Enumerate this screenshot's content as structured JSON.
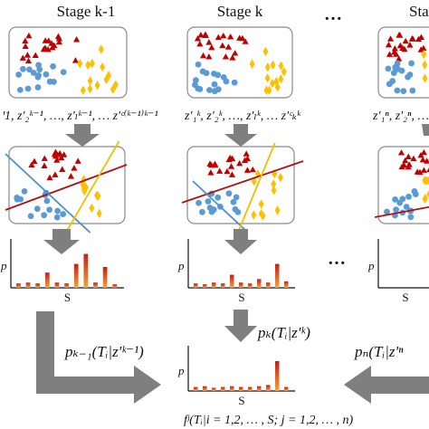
{
  "stages": [
    {
      "title": "Stage k-1",
      "z_label": "ꞌ1, z'₂ᵏ⁻¹, …, z'ₗᵏ⁻¹, … z'ᶜ⁽ᵏ⁻¹⁾ᵏ⁻¹",
      "hist_values": [
        0.1,
        0.12,
        0.1,
        0.35,
        0.12,
        0.1,
        0.55,
        0.78,
        0.12,
        0.48,
        0.08
      ],
      "arrow_label": "p_{k−1}(T_i|z'^{k−1})",
      "arrow_text": "pₖ₋₁(Tᵢ|z'ᵏ⁻¹)"
    },
    {
      "title": "Stage k",
      "z_label": "z'₁ᵏ, z'₂ᵏ, …, z'ₗᵏ, … z'ᶜₖᵏ",
      "hist_values": [
        0.1,
        0.08,
        0.12,
        0.1,
        0.3,
        0.12,
        0.1,
        0.2,
        0.12,
        0.55,
        0.15
      ],
      "arrow_text": "pₖ(Tᵢ|z'ᵏ)"
    },
    {
      "title": "Stage n",
      "z_label": "z'₁ⁿ, z'₂ⁿ, …",
      "arrow_text": "pₙ(Tᵢ|z'ⁿ"
    }
  ],
  "dots_label": "…",
  "hist_axis": {
    "ylabel": "p",
    "xlabel": "S"
  },
  "final": {
    "hist_values": [
      0.1,
      0.12,
      0.08,
      0.1,
      0.12,
      0.1,
      0.1,
      0.12,
      0.15,
      0.75,
      0.1
    ],
    "formula": "fʲ(Tᵢ|i = 1,2, … , S;  j = 1,2, … , n)"
  },
  "colors": {
    "triangle": "#c00000",
    "circle": "#5b9bd5",
    "diamond": "#ffc000",
    "arrow": "#7f7f7f",
    "line_red": "#b01010",
    "line_blue": "#4a90d0",
    "line_yellow": "#f0c000",
    "bar_top": "#c0201a",
    "bar_bottom": "#f4a43a"
  },
  "icons": [
    "triangle-marker",
    "circle-marker",
    "diamond-marker",
    "down-arrow",
    "right-arrow",
    "left-arrow"
  ]
}
